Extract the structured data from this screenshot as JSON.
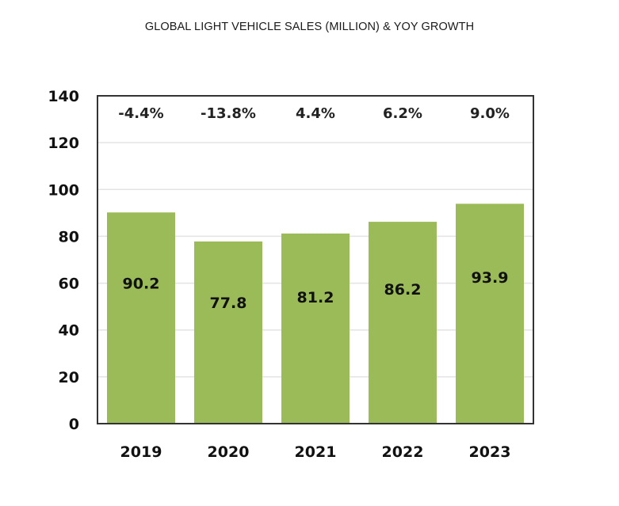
{
  "chart_data": {
    "type": "bar",
    "title": "GLOBAL LIGHT VEHICLE SALES (MILLION) & YOY GROWTH",
    "xlabel": "",
    "ylabel": "",
    "categories": [
      "2019",
      "2020",
      "2021",
      "2022",
      "2023"
    ],
    "values": [
      90.2,
      77.8,
      81.2,
      86.2,
      93.9
    ],
    "value_labels": [
      "90.2",
      "77.8",
      "81.2",
      "86.2",
      "93.9"
    ],
    "yoy_growth": [
      -4.4,
      -13.8,
      4.4,
      6.2,
      9.0
    ],
    "yoy_growth_labels": [
      "-4.4%",
      "-13.8%",
      "4.4%",
      "6.2%",
      "9.0%"
    ],
    "ylim": [
      0,
      140
    ],
    "yticks": [
      0,
      20,
      40,
      60,
      80,
      100,
      120,
      140
    ],
    "ytick_labels": [
      "0",
      "20",
      "40",
      "60",
      "80",
      "100",
      "120",
      "140"
    ],
    "grid": true,
    "legend": "none",
    "colors": {
      "bar": "#9bbb59",
      "grid": "#e3e3e3",
      "frame": "#333333",
      "text": "#111111"
    }
  }
}
